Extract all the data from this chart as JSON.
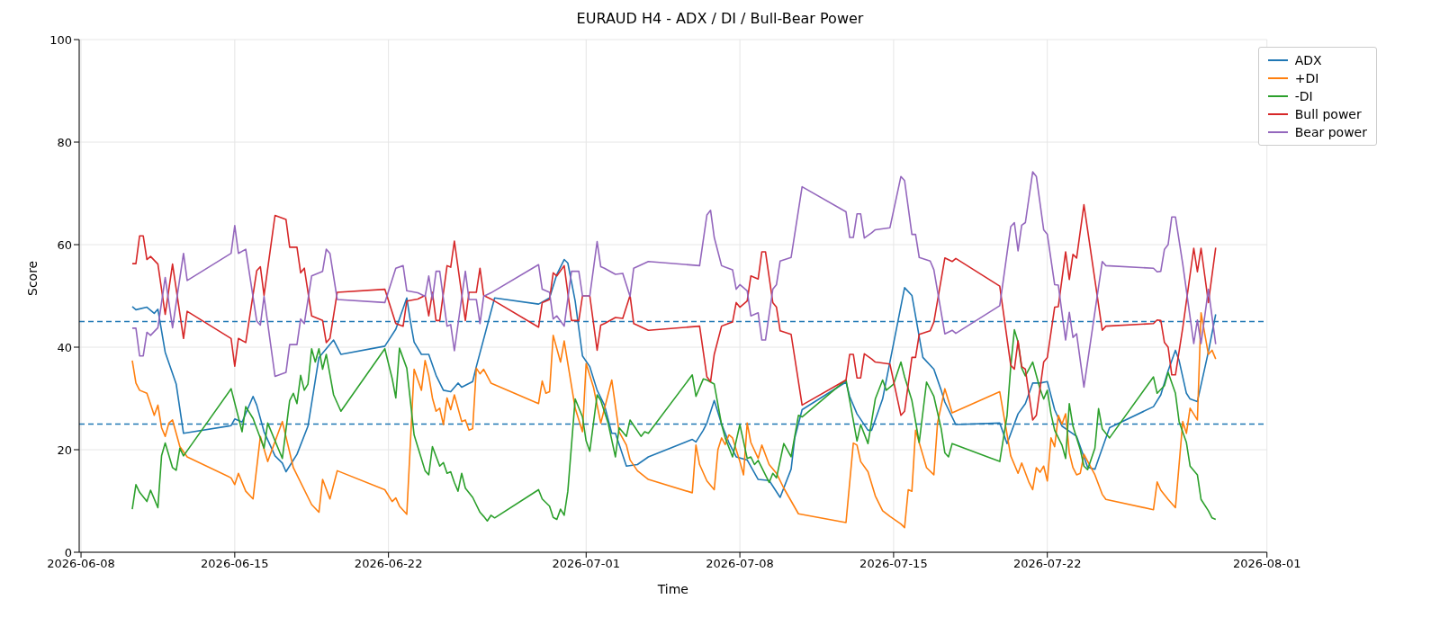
{
  "chart_data": {
    "type": "line",
    "title": "EURAUD H4 - ADX / DI / Bull-Bear Power",
    "xlabel": "Time",
    "ylabel": "Score",
    "xlim": [
      "2026-06-07T22:00",
      "2026-08-01T00:00"
    ],
    "xticks": [
      "2026-06-08",
      "2026-06-15",
      "2026-06-22",
      "2026-07-01",
      "2026-07-08",
      "2026-07-15",
      "2026-07-22",
      "2026-08-01"
    ],
    "ylim": [
      0,
      100
    ],
    "yticks": [
      0,
      20,
      40,
      60,
      80,
      100
    ],
    "grid": true,
    "legend": "top right",
    "ref_lines": [
      {
        "axis": "y",
        "value": 45,
        "color": "#1f77b4",
        "line_style": "dashed"
      },
      {
        "axis": "y",
        "value": 25,
        "color": "#1f77b4",
        "line_style": "dashed"
      }
    ],
    "series": [
      {
        "name": "ADX",
        "color": "#1f77b4",
        "x": [
          "2026-06-10T08:00",
          "2026-06-10T12:00",
          "2026-06-11T00:00",
          "2026-06-11T08:00",
          "2026-06-11T12:00",
          "2026-06-11T20:00",
          "2026-06-12T08:00",
          "2026-06-12T16:00",
          "2026-06-14T20:00",
          "2026-06-15T00:00",
          "2026-06-15T08:00",
          "2026-06-15T20:00",
          "2026-06-16T00:00",
          "2026-06-16T08:00",
          "2026-06-16T20:00",
          "2026-06-17T04:00",
          "2026-06-17T08:00",
          "2026-06-17T20:00",
          "2026-06-18T08:00",
          "2026-06-18T20:00",
          "2026-06-19T12:00",
          "2026-06-19T20:00",
          "2026-06-21T20:00",
          "2026-06-22T08:00",
          "2026-06-22T20:00",
          "2026-06-23T00:00",
          "2026-06-23T04:00",
          "2026-06-23T12:00",
          "2026-06-23T20:00",
          "2026-06-24T04:00",
          "2026-06-24T12:00",
          "2026-06-24T20:00",
          "2026-06-25T04:00",
          "2026-06-25T08:00",
          "2026-06-25T20:00",
          "2026-06-26T00:00",
          "2026-06-26T20:00",
          "2026-06-28T20:00",
          "2026-06-29T08:00",
          "2026-06-29T16:00",
          "2026-06-30T00:00",
          "2026-06-30T04:00",
          "2026-06-30T12:00",
          "2026-06-30T20:00",
          "2026-07-01T04:00",
          "2026-07-01T12:00",
          "2026-07-01T20:00",
          "2026-07-02T04:00",
          "2026-07-02T08:00",
          "2026-07-02T20:00",
          "2026-07-03T08:00",
          "2026-07-03T20:00",
          "2026-07-05T20:00",
          "2026-07-06T00:00",
          "2026-07-06T08:00",
          "2026-07-06T12:00",
          "2026-07-06T20:00",
          "2026-07-07T04:00",
          "2026-07-07T12:00",
          "2026-07-07T20:00",
          "2026-07-08T08:00",
          "2026-07-08T20:00",
          "2026-07-09T08:00",
          "2026-07-09T20:00",
          "2026-07-10T08:00",
          "2026-07-10T12:00",
          "2026-07-10T20:00",
          "2026-07-12T20:00",
          "2026-07-13T00:00",
          "2026-07-13T08:00",
          "2026-07-13T20:00",
          "2026-07-14T00:00",
          "2026-07-14T12:00",
          "2026-07-15T12:00",
          "2026-07-15T20:00",
          "2026-07-16T08:00",
          "2026-07-16T20:00",
          "2026-07-17T04:00",
          "2026-07-17T08:00",
          "2026-07-17T20:00",
          "2026-07-19T20:00",
          "2026-07-20T04:00",
          "2026-07-20T16:00",
          "2026-07-21T00:00",
          "2026-07-21T08:00",
          "2026-07-21T16:00",
          "2026-07-22T00:00",
          "2026-07-22T08:00",
          "2026-07-22T16:00",
          "2026-07-23T08:00",
          "2026-07-23T16:00",
          "2026-07-23T20:00",
          "2026-07-24T04:00",
          "2026-07-24T20:00",
          "2026-07-26T20:00",
          "2026-07-27T04:00",
          "2026-07-27T12:00",
          "2026-07-27T20:00",
          "2026-07-28T00:00",
          "2026-07-28T08:00",
          "2026-07-28T12:00",
          "2026-07-28T20:00",
          "2026-07-29T08:00",
          "2026-07-29T16:00"
        ],
        "values": [
          47.9,
          47.3,
          47.8,
          46.6,
          47.4,
          39.0,
          32.8,
          23.2,
          24.7,
          26.0,
          25.4,
          30.4,
          28.7,
          23.5,
          18.8,
          17.4,
          15.7,
          19.1,
          24.6,
          38.0,
          41.4,
          38.6,
          40.2,
          43.5,
          49.6,
          45.0,
          41.0,
          38.6,
          38.6,
          34.5,
          31.6,
          31.3,
          33.0,
          32.2,
          33.3,
          36.2,
          49.6,
          48.4,
          49.6,
          54.2,
          57.1,
          56.4,
          49.0,
          38.3,
          36.2,
          31.6,
          28.7,
          23.2,
          23.2,
          16.8,
          17.1,
          18.6,
          22.0,
          21.5,
          23.8,
          25.2,
          29.6,
          25.0,
          21.4,
          18.6,
          18.0,
          14.2,
          14.0,
          10.7,
          16.2,
          22.3,
          27.8,
          33.2,
          30.4,
          27.0,
          23.8,
          23.8,
          29.9,
          51.6,
          50.1,
          38.0,
          35.7,
          31.6,
          29.3,
          24.9,
          25.2,
          21.2,
          27.0,
          29.0,
          33.0,
          33.0,
          33.3,
          27.8,
          24.6,
          22.6,
          18.6,
          16.6,
          16.2,
          24.3,
          28.4,
          30.7,
          35.4,
          39.4,
          37.4,
          31.0,
          29.9,
          29.4,
          39.1,
          46.4
        ]
      },
      {
        "name": "+DI",
        "color": "#ff7f0e",
        "x": [
          "2026-06-10T08:00",
          "2026-06-10T12:00",
          "2026-06-10T16:00",
          "2026-06-11T00:00",
          "2026-06-11T08:00",
          "2026-06-11T12:00",
          "2026-06-11T16:00",
          "2026-06-11T20:00",
          "2026-06-12T00:00",
          "2026-06-12T04:00",
          "2026-06-12T12:00",
          "2026-06-12T20:00",
          "2026-06-14T20:00",
          "2026-06-15T00:00",
          "2026-06-15T04:00",
          "2026-06-15T12:00",
          "2026-06-15T20:00",
          "2026-06-16T04:00",
          "2026-06-16T12:00",
          "2026-06-17T04:00",
          "2026-06-17T16:00",
          "2026-06-18T12:00",
          "2026-06-18T20:00",
          "2026-06-19T00:00",
          "2026-06-19T08:00",
          "2026-06-19T16:00",
          "2026-06-21T20:00",
          "2026-06-22T04:00",
          "2026-06-22T08:00",
          "2026-06-22T12:00",
          "2026-06-22T20:00",
          "2026-06-23T04:00",
          "2026-06-23T12:00",
          "2026-06-23T16:00",
          "2026-06-23T20:00",
          "2026-06-24T00:00",
          "2026-06-24T04:00",
          "2026-06-24T08:00",
          "2026-06-24T12:00",
          "2026-06-24T16:00",
          "2026-06-24T20:00",
          "2026-06-25T00:00",
          "2026-06-25T08:00",
          "2026-06-25T12:00",
          "2026-06-25T16:00",
          "2026-06-25T20:00",
          "2026-06-26T00:00",
          "2026-06-26T04:00",
          "2026-06-26T08:00",
          "2026-06-26T16:00",
          "2026-06-28T20:00",
          "2026-06-29T00:00",
          "2026-06-29T04:00",
          "2026-06-29T08:00",
          "2026-06-29T12:00",
          "2026-06-29T20:00",
          "2026-06-30T00:00",
          "2026-06-30T12:00",
          "2026-06-30T20:00",
          "2026-07-01T00:00",
          "2026-07-01T08:00",
          "2026-07-01T16:00",
          "2026-07-02T04:00",
          "2026-07-02T12:00",
          "2026-07-02T20:00",
          "2026-07-03T00:00",
          "2026-07-03T08:00",
          "2026-07-03T20:00",
          "2026-07-05T20:00",
          "2026-07-06T00:00",
          "2026-07-06T04:00",
          "2026-07-06T12:00",
          "2026-07-06T20:00",
          "2026-07-07T00:00",
          "2026-07-07T04:00",
          "2026-07-07T08:00",
          "2026-07-07T12:00",
          "2026-07-07T16:00",
          "2026-07-08T00:00",
          "2026-07-08T04:00",
          "2026-07-08T08:00",
          "2026-07-08T12:00",
          "2026-07-08T20:00",
          "2026-07-09T00:00",
          "2026-07-09T08:00",
          "2026-07-09T16:00",
          "2026-07-10T00:00",
          "2026-07-10T16:00",
          "2026-07-12T20:00",
          "2026-07-13T04:00",
          "2026-07-13T08:00",
          "2026-07-13T12:00",
          "2026-07-13T20:00",
          "2026-07-14T04:00",
          "2026-07-14T12:00",
          "2026-07-14T20:00",
          "2026-07-15T08:00",
          "2026-07-15T12:00",
          "2026-07-15T16:00",
          "2026-07-15T20:00",
          "2026-07-16T00:00",
          "2026-07-16T12:00",
          "2026-07-16T20:00",
          "2026-07-17T00:00",
          "2026-07-17T08:00",
          "2026-07-17T16:00",
          "2026-07-19T20:00",
          "2026-07-20T08:00",
          "2026-07-20T16:00",
          "2026-07-20T20:00",
          "2026-07-21T04:00",
          "2026-07-21T08:00",
          "2026-07-21T12:00",
          "2026-07-21T16:00",
          "2026-07-21T20:00",
          "2026-07-22T00:00",
          "2026-07-22T04:00",
          "2026-07-22T08:00",
          "2026-07-22T12:00",
          "2026-07-22T16:00",
          "2026-07-22T20:00",
          "2026-07-23T00:00",
          "2026-07-23T04:00",
          "2026-07-23T08:00",
          "2026-07-23T12:00",
          "2026-07-23T16:00",
          "2026-07-24T04:00",
          "2026-07-24T12:00",
          "2026-07-24T16:00",
          "2026-07-26T20:00",
          "2026-07-27T00:00",
          "2026-07-27T04:00",
          "2026-07-27T12:00",
          "2026-07-27T20:00",
          "2026-07-28T04:00",
          "2026-07-28T08:00",
          "2026-07-28T12:00",
          "2026-07-28T20:00",
          "2026-07-29T00:00",
          "2026-07-29T08:00",
          "2026-07-29T12:00",
          "2026-07-29T16:00"
        ],
        "values": [
          37.4,
          33.0,
          31.6,
          31.0,
          26.7,
          28.7,
          24.3,
          22.6,
          25.2,
          25.8,
          20.6,
          18.6,
          14.5,
          13.2,
          15.4,
          11.9,
          10.4,
          22.6,
          17.7,
          25.5,
          16.5,
          9.3,
          7.8,
          14.2,
          10.4,
          15.9,
          12.2,
          9.9,
          10.6,
          9.0,
          7.4,
          35.7,
          31.6,
          37.4,
          34.5,
          30.1,
          27.5,
          28.1,
          24.9,
          30.1,
          27.8,
          30.7,
          25.5,
          25.8,
          23.8,
          24.1,
          35.9,
          34.8,
          35.7,
          33.0,
          29.0,
          33.4,
          31.0,
          31.3,
          42.3,
          37.1,
          41.2,
          28.1,
          23.5,
          36.8,
          32.2,
          25.2,
          33.6,
          23.5,
          20.9,
          18.0,
          15.9,
          14.2,
          11.6,
          20.9,
          17.1,
          13.9,
          12.2,
          20.0,
          22.3,
          21.0,
          22.9,
          22.3,
          17.7,
          15.1,
          25.2,
          21.4,
          18.3,
          20.9,
          17.1,
          15.4,
          12.5,
          7.5,
          5.8,
          21.3,
          20.9,
          17.7,
          15.7,
          11.0,
          8.1,
          7.0,
          5.5,
          4.8,
          12.2,
          11.9,
          23.8,
          16.5,
          15.1,
          25.2,
          31.9,
          27.2,
          31.3,
          18.8,
          15.4,
          17.4,
          13.6,
          12.2,
          16.5,
          15.6,
          16.8,
          13.9,
          22.3,
          20.6,
          26.7,
          25.0,
          27.0,
          19.4,
          16.5,
          15.1,
          15.4,
          19.1,
          15.1,
          11.3,
          10.3,
          8.3,
          13.7,
          12.1,
          10.3,
          8.7,
          25.5,
          23.2,
          28.1,
          25.8,
          46.7,
          38.6,
          39.4,
          37.7
        ]
      },
      {
        "name": "-DI",
        "color": "#2ca02c",
        "x": [
          "2026-06-10T08:00",
          "2026-06-10T12:00",
          "2026-06-10T16:00",
          "2026-06-11T00:00",
          "2026-06-11T04:00",
          "2026-06-11T12:00",
          "2026-06-11T16:00",
          "2026-06-11T20:00",
          "2026-06-12T04:00",
          "2026-06-12T08:00",
          "2026-06-12T12:00",
          "2026-06-12T16:00",
          "2026-06-14T20:00",
          "2026-06-15T08:00",
          "2026-06-15T12:00",
          "2026-06-15T20:00",
          "2026-06-16T08:00",
          "2026-06-16T12:00",
          "2026-06-17T04:00",
          "2026-06-17T12:00",
          "2026-06-17T16:00",
          "2026-06-17T20:00",
          "2026-06-18T00:00",
          "2026-06-18T04:00",
          "2026-06-18T08:00",
          "2026-06-18T12:00",
          "2026-06-18T16:00",
          "2026-06-18T20:00",
          "2026-06-19T00:00",
          "2026-06-19T04:00",
          "2026-06-19T12:00",
          "2026-06-19T20:00",
          "2026-06-21T20:00",
          "2026-06-22T04:00",
          "2026-06-22T08:00",
          "2026-06-22T12:00",
          "2026-06-22T20:00",
          "2026-06-23T04:00",
          "2026-06-23T16:00",
          "2026-06-23T20:00",
          "2026-06-24T00:00",
          "2026-06-24T08:00",
          "2026-06-24T12:00",
          "2026-06-24T16:00",
          "2026-06-24T20:00",
          "2026-06-25T00:00",
          "2026-06-25T04:00",
          "2026-06-25T08:00",
          "2026-06-25T12:00",
          "2026-06-25T20:00",
          "2026-06-26T04:00",
          "2026-06-26T08:00",
          "2026-06-26T12:00",
          "2026-06-26T16:00",
          "2026-06-26T20:00",
          "2026-06-28T20:00",
          "2026-06-29T00:00",
          "2026-06-29T08:00",
          "2026-06-29T12:00",
          "2026-06-29T16:00",
          "2026-06-29T20:00",
          "2026-06-30T00:00",
          "2026-06-30T04:00",
          "2026-06-30T12:00",
          "2026-06-30T20:00",
          "2026-07-01T00:00",
          "2026-07-01T04:00",
          "2026-07-01T12:00",
          "2026-07-01T16:00",
          "2026-07-02T00:00",
          "2026-07-02T08:00",
          "2026-07-02T12:00",
          "2026-07-02T20:00",
          "2026-07-03T00:00",
          "2026-07-03T12:00",
          "2026-07-03T16:00",
          "2026-07-03T20:00",
          "2026-07-05T20:00",
          "2026-07-06T00:00",
          "2026-07-06T08:00",
          "2026-07-06T12:00",
          "2026-07-06T20:00",
          "2026-07-07T04:00",
          "2026-07-07T08:00",
          "2026-07-07T16:00",
          "2026-07-08T00:00",
          "2026-07-08T08:00",
          "2026-07-08T12:00",
          "2026-07-08T16:00",
          "2026-07-08T20:00",
          "2026-07-09T08:00",
          "2026-07-09T12:00",
          "2026-07-09T16:00",
          "2026-07-10T00:00",
          "2026-07-10T08:00",
          "2026-07-10T16:00",
          "2026-07-10T20:00",
          "2026-07-12T20:00",
          "2026-07-13T08:00",
          "2026-07-13T12:00",
          "2026-07-13T20:00",
          "2026-07-14T04:00",
          "2026-07-14T12:00",
          "2026-07-14T16:00",
          "2026-07-15T00:00",
          "2026-07-15T08:00",
          "2026-07-15T12:00",
          "2026-07-15T20:00",
          "2026-07-16T04:00",
          "2026-07-16T12:00",
          "2026-07-16T20:00",
          "2026-07-17T04:00",
          "2026-07-17T08:00",
          "2026-07-17T12:00",
          "2026-07-17T16:00",
          "2026-07-19T20:00",
          "2026-07-20T04:00",
          "2026-07-20T08:00",
          "2026-07-20T12:00",
          "2026-07-20T16:00",
          "2026-07-20T20:00",
          "2026-07-21T00:00",
          "2026-07-21T08:00",
          "2026-07-21T16:00",
          "2026-07-21T20:00",
          "2026-07-22T00:00",
          "2026-07-22T04:00",
          "2026-07-22T08:00",
          "2026-07-22T16:00",
          "2026-07-22T20:00",
          "2026-07-23T00:00",
          "2026-07-23T04:00",
          "2026-07-23T12:00",
          "2026-07-23T16:00",
          "2026-07-23T20:00",
          "2026-07-24T04:00",
          "2026-07-24T08:00",
          "2026-07-24T12:00",
          "2026-07-24T20:00",
          "2026-07-26T20:00",
          "2026-07-27T00:00",
          "2026-07-27T08:00",
          "2026-07-27T12:00",
          "2026-07-27T20:00",
          "2026-07-28T00:00",
          "2026-07-28T08:00",
          "2026-07-28T12:00",
          "2026-07-28T20:00",
          "2026-07-29T00:00",
          "2026-07-29T08:00",
          "2026-07-29T12:00",
          "2026-07-29T16:00"
        ],
        "values": [
          8.4,
          13.2,
          11.7,
          9.9,
          12.1,
          8.7,
          18.8,
          21.3,
          16.5,
          16.0,
          20.3,
          18.8,
          31.9,
          23.5,
          28.4,
          26.1,
          20.3,
          25.2,
          18.3,
          29.6,
          31.0,
          29.0,
          34.5,
          31.6,
          32.8,
          39.7,
          37.1,
          39.7,
          35.7,
          38.6,
          30.7,
          27.5,
          39.7,
          33.9,
          30.1,
          39.8,
          35.9,
          22.9,
          15.9,
          15.1,
          20.6,
          16.8,
          17.5,
          15.4,
          15.7,
          13.6,
          11.9,
          15.4,
          12.5,
          10.7,
          7.8,
          7.0,
          6.1,
          7.2,
          6.7,
          12.2,
          10.4,
          9.0,
          6.8,
          6.4,
          8.4,
          7.2,
          11.9,
          29.9,
          26.4,
          21.7,
          19.7,
          30.7,
          29.6,
          25.2,
          18.6,
          24.3,
          22.6,
          25.8,
          22.6,
          23.5,
          23.2,
          34.6,
          30.4,
          33.8,
          33.6,
          32.8,
          24.9,
          22.3,
          18.6,
          24.9,
          18.3,
          18.6,
          17.1,
          17.9,
          13.6,
          15.4,
          14.5,
          21.2,
          18.6,
          26.7,
          26.4,
          33.6,
          21.7,
          24.9,
          21.2,
          29.9,
          33.6,
          31.6,
          32.8,
          37.1,
          34.2,
          29.6,
          21.4,
          33.2,
          30.4,
          24.1,
          19.4,
          18.6,
          21.2,
          17.7,
          26.7,
          36.2,
          43.4,
          41.0,
          35.9,
          34.4,
          37.1,
          31.9,
          29.9,
          31.6,
          27.0,
          23.8,
          20.9,
          18.3,
          29.0,
          24.6,
          20.0,
          16.8,
          16.1,
          20.3,
          28.0,
          24.1,
          22.3,
          34.2,
          31.0,
          32.5,
          35.1,
          31.0,
          25.5,
          21.4,
          16.8,
          15.1,
          10.3,
          8.1,
          6.7,
          6.4
        ]
      },
      {
        "name": "Bull power",
        "color": "#d62728",
        "x": [
          "2026-06-10T08:00",
          "2026-06-10T12:00",
          "2026-06-10T16:00",
          "2026-06-10T20:00",
          "2026-06-11T00:00",
          "2026-06-11T04:00",
          "2026-06-11T12:00",
          "2026-06-11T20:00",
          "2026-06-12T04:00",
          "2026-06-12T16:00",
          "2026-06-12T20:00",
          "2026-06-14T20:00",
          "2026-06-15T00:00",
          "2026-06-15T04:00",
          "2026-06-15T12:00",
          "2026-06-16T00:00",
          "2026-06-16T04:00",
          "2026-06-16T08:00",
          "2026-06-16T20:00",
          "2026-06-17T08:00",
          "2026-06-17T12:00",
          "2026-06-17T20:00",
          "2026-06-18T00:00",
          "2026-06-18T04:00",
          "2026-06-18T12:00",
          "2026-06-19T00:00",
          "2026-06-19T04:00",
          "2026-06-19T08:00",
          "2026-06-19T16:00",
          "2026-06-21T20:00",
          "2026-06-22T08:00",
          "2026-06-22T16:00",
          "2026-06-22T20:00",
          "2026-06-23T08:00",
          "2026-06-23T16:00",
          "2026-06-23T20:00",
          "2026-06-24T00:00",
          "2026-06-24T04:00",
          "2026-06-24T08:00",
          "2026-06-24T16:00",
          "2026-06-24T20:00",
          "2026-06-25T00:00",
          "2026-06-25T12:00",
          "2026-06-25T16:00",
          "2026-06-26T00:00",
          "2026-06-26T04:00",
          "2026-06-26T08:00",
          "2026-06-26T16:00",
          "2026-06-28T20:00",
          "2026-06-29T00:00",
          "2026-06-29T08:00",
          "2026-06-29T12:00",
          "2026-06-29T16:00",
          "2026-06-30T00:00",
          "2026-06-30T08:00",
          "2026-06-30T16:00",
          "2026-06-30T20:00",
          "2026-07-01T04:00",
          "2026-07-01T12:00",
          "2026-07-01T16:00",
          "2026-07-01T20:00",
          "2026-07-02T08:00",
          "2026-07-02T16:00",
          "2026-07-03T00:00",
          "2026-07-03T04:00",
          "2026-07-03T20:00",
          "2026-07-06T04:00",
          "2026-07-06T12:00",
          "2026-07-06T16:00",
          "2026-07-06T20:00",
          "2026-07-07T04:00",
          "2026-07-07T08:00",
          "2026-07-07T16:00",
          "2026-07-07T20:00",
          "2026-07-08T00:00",
          "2026-07-08T08:00",
          "2026-07-08T12:00",
          "2026-07-08T20:00",
          "2026-07-09T00:00",
          "2026-07-09T04:00",
          "2026-07-09T12:00",
          "2026-07-09T16:00",
          "2026-07-09T20:00",
          "2026-07-10T08:00",
          "2026-07-10T20:00",
          "2026-07-12T20:00",
          "2026-07-13T00:00",
          "2026-07-13T04:00",
          "2026-07-13T08:00",
          "2026-07-13T12:00",
          "2026-07-13T16:00",
          "2026-07-14T00:00",
          "2026-07-14T04:00",
          "2026-07-14T20:00",
          "2026-07-15T08:00",
          "2026-07-15T12:00",
          "2026-07-15T20:00",
          "2026-07-16T00:00",
          "2026-07-16T04:00",
          "2026-07-16T16:00",
          "2026-07-16T20:00",
          "2026-07-17T08:00",
          "2026-07-17T16:00",
          "2026-07-17T20:00",
          "2026-07-19T20:00",
          "2026-07-20T08:00",
          "2026-07-20T12:00",
          "2026-07-20T16:00",
          "2026-07-20T20:00",
          "2026-07-21T00:00",
          "2026-07-21T08:00",
          "2026-07-21T12:00",
          "2026-07-21T20:00",
          "2026-07-22T00:00",
          "2026-07-22T08:00",
          "2026-07-22T12:00",
          "2026-07-22T20:00",
          "2026-07-23T00:00",
          "2026-07-23T04:00",
          "2026-07-23T08:00",
          "2026-07-23T16:00",
          "2026-07-24T12:00",
          "2026-07-24T16:00",
          "2026-07-26T20:00",
          "2026-07-27T00:00",
          "2026-07-27T04:00",
          "2026-07-27T08:00",
          "2026-07-27T12:00",
          "2026-07-27T16:00",
          "2026-07-27T20:00",
          "2026-07-28T04:00",
          "2026-07-28T16:00",
          "2026-07-28T20:00",
          "2026-07-29T00:00",
          "2026-07-29T08:00",
          "2026-07-29T16:00"
        ],
        "values": [
          56.3,
          56.3,
          61.7,
          61.7,
          57.1,
          57.7,
          56.2,
          46.4,
          56.2,
          41.7,
          47.0,
          41.7,
          36.3,
          41.7,
          40.9,
          54.9,
          55.7,
          50.1,
          65.7,
          64.9,
          59.5,
          59.5,
          54.5,
          55.4,
          46.1,
          45.2,
          40.9,
          41.7,
          50.7,
          51.3,
          44.6,
          44.1,
          49.0,
          49.4,
          50.1,
          46.1,
          50.7,
          45.2,
          45.2,
          55.9,
          55.6,
          60.7,
          45.2,
          50.7,
          50.7,
          55.4,
          50.1,
          49.4,
          43.9,
          48.7,
          49.3,
          54.5,
          53.9,
          55.9,
          45.2,
          45.2,
          50.0,
          50.0,
          39.4,
          44.3,
          44.6,
          45.8,
          45.6,
          50.1,
          44.6,
          43.3,
          44.1,
          34.2,
          33.3,
          38.6,
          44.1,
          44.4,
          44.9,
          48.7,
          47.8,
          49.0,
          53.9,
          53.3,
          58.6,
          58.6,
          48.7,
          47.8,
          43.2,
          42.5,
          28.7,
          33.6,
          38.6,
          38.6,
          34.0,
          34.0,
          38.7,
          37.7,
          37.1,
          36.7,
          26.7,
          27.5,
          38.0,
          38.0,
          42.5,
          43.2,
          44.9,
          57.4,
          56.7,
          57.3,
          51.9,
          36.5,
          35.7,
          41.2,
          36.2,
          35.7,
          25.8,
          26.7,
          37.1,
          38.0,
          47.8,
          47.9,
          58.6,
          53.2,
          58.1,
          57.4,
          67.8,
          43.3,
          44.1,
          44.6,
          45.3,
          45.2,
          40.9,
          40.0,
          34.6,
          34.6,
          43.8,
          59.3,
          54.7,
          59.3,
          48.7,
          59.4
        ]
      },
      {
        "name": "Bear power",
        "color": "#9467bd",
        "x": [
          "2026-06-10T08:00",
          "2026-06-10T12:00",
          "2026-06-10T16:00",
          "2026-06-10T20:00",
          "2026-06-11T00:00",
          "2026-06-11T04:00",
          "2026-06-11T12:00",
          "2026-06-11T20:00",
          "2026-06-12T04:00",
          "2026-06-12T16:00",
          "2026-06-12T20:00",
          "2026-06-14T20:00",
          "2026-06-15T00:00",
          "2026-06-15T04:00",
          "2026-06-15T12:00",
          "2026-06-16T00:00",
          "2026-06-16T04:00",
          "2026-06-16T08:00",
          "2026-06-16T20:00",
          "2026-06-17T08:00",
          "2026-06-17T12:00",
          "2026-06-17T20:00",
          "2026-06-18T00:00",
          "2026-06-18T04:00",
          "2026-06-18T12:00",
          "2026-06-19T00:00",
          "2026-06-19T04:00",
          "2026-06-19T08:00",
          "2026-06-19T16:00",
          "2026-06-21T20:00",
          "2026-06-22T08:00",
          "2026-06-22T16:00",
          "2026-06-22T20:00",
          "2026-06-23T08:00",
          "2026-06-23T16:00",
          "2026-06-23T20:00",
          "2026-06-24T00:00",
          "2026-06-24T04:00",
          "2026-06-24T08:00",
          "2026-06-24T16:00",
          "2026-06-24T20:00",
          "2026-06-25T00:00",
          "2026-06-25T12:00",
          "2026-06-25T16:00",
          "2026-06-26T00:00",
          "2026-06-26T04:00",
          "2026-06-26T08:00",
          "2026-06-26T16:00",
          "2026-06-28T20:00",
          "2026-06-29T00:00",
          "2026-06-29T08:00",
          "2026-06-29T12:00",
          "2026-06-29T16:00",
          "2026-06-30T00:00",
          "2026-06-30T08:00",
          "2026-06-30T16:00",
          "2026-06-30T20:00",
          "2026-07-01T04:00",
          "2026-07-01T12:00",
          "2026-07-01T16:00",
          "2026-07-01T20:00",
          "2026-07-02T08:00",
          "2026-07-02T16:00",
          "2026-07-03T00:00",
          "2026-07-03T04:00",
          "2026-07-03T20:00",
          "2026-07-06T04:00",
          "2026-07-06T12:00",
          "2026-07-06T16:00",
          "2026-07-06T20:00",
          "2026-07-07T04:00",
          "2026-07-07T08:00",
          "2026-07-07T16:00",
          "2026-07-07T20:00",
          "2026-07-08T00:00",
          "2026-07-08T08:00",
          "2026-07-08T12:00",
          "2026-07-08T20:00",
          "2026-07-09T00:00",
          "2026-07-09T04:00",
          "2026-07-09T12:00",
          "2026-07-09T16:00",
          "2026-07-09T20:00",
          "2026-07-10T08:00",
          "2026-07-10T20:00",
          "2026-07-12T20:00",
          "2026-07-13T00:00",
          "2026-07-13T04:00",
          "2026-07-13T08:00",
          "2026-07-13T12:00",
          "2026-07-13T16:00",
          "2026-07-14T00:00",
          "2026-07-14T04:00",
          "2026-07-14T20:00",
          "2026-07-15T08:00",
          "2026-07-15T12:00",
          "2026-07-15T20:00",
          "2026-07-16T00:00",
          "2026-07-16T04:00",
          "2026-07-16T16:00",
          "2026-07-16T20:00",
          "2026-07-17T08:00",
          "2026-07-17T16:00",
          "2026-07-17T20:00",
          "2026-07-19T20:00",
          "2026-07-20T08:00",
          "2026-07-20T12:00",
          "2026-07-20T16:00",
          "2026-07-20T20:00",
          "2026-07-21T00:00",
          "2026-07-21T08:00",
          "2026-07-21T12:00",
          "2026-07-21T20:00",
          "2026-07-22T00:00",
          "2026-07-22T08:00",
          "2026-07-22T12:00",
          "2026-07-22T20:00",
          "2026-07-23T00:00",
          "2026-07-23T04:00",
          "2026-07-23T08:00",
          "2026-07-23T16:00",
          "2026-07-24T12:00",
          "2026-07-24T16:00",
          "2026-07-26T20:00",
          "2026-07-27T00:00",
          "2026-07-27T04:00",
          "2026-07-27T08:00",
          "2026-07-27T12:00",
          "2026-07-27T16:00",
          "2026-07-27T20:00",
          "2026-07-28T04:00",
          "2026-07-28T16:00",
          "2026-07-28T20:00",
          "2026-07-29T00:00",
          "2026-07-29T08:00",
          "2026-07-29T16:00"
        ],
        "values": [
          43.7,
          43.7,
          38.3,
          38.3,
          42.9,
          42.3,
          43.8,
          53.6,
          43.8,
          58.3,
          53.0,
          58.3,
          63.7,
          58.3,
          59.1,
          45.1,
          44.3,
          49.9,
          34.3,
          35.1,
          40.5,
          40.5,
          45.5,
          44.6,
          53.9,
          54.8,
          59.1,
          58.3,
          49.3,
          48.7,
          55.4,
          55.9,
          51.0,
          50.6,
          49.9,
          53.9,
          49.3,
          54.8,
          54.8,
          44.1,
          44.4,
          39.3,
          54.8,
          49.3,
          49.3,
          44.6,
          49.9,
          50.6,
          56.1,
          51.3,
          50.7,
          45.5,
          46.1,
          44.1,
          54.8,
          54.8,
          50.0,
          50.0,
          60.6,
          55.7,
          55.4,
          54.2,
          54.4,
          49.9,
          55.4,
          56.7,
          55.9,
          65.8,
          66.7,
          61.4,
          55.9,
          55.6,
          55.1,
          51.3,
          52.2,
          51.0,
          46.1,
          46.7,
          41.4,
          41.4,
          51.3,
          52.2,
          56.8,
          57.5,
          71.3,
          66.4,
          61.4,
          61.4,
          66.0,
          66.0,
          61.3,
          62.3,
          62.9,
          63.3,
          73.3,
          72.5,
          62.0,
          62.0,
          57.5,
          56.8,
          55.1,
          42.6,
          43.3,
          42.7,
          48.1,
          63.5,
          64.3,
          58.8,
          63.8,
          64.3,
          74.2,
          73.3,
          62.9,
          62.0,
          52.2,
          52.1,
          41.4,
          46.8,
          41.9,
          42.6,
          32.2,
          56.7,
          55.9,
          55.4,
          54.7,
          54.8,
          59.1,
          60.0,
          65.4,
          65.4,
          56.2,
          40.7,
          45.3,
          40.7,
          51.3,
          40.6
        ]
      }
    ]
  }
}
